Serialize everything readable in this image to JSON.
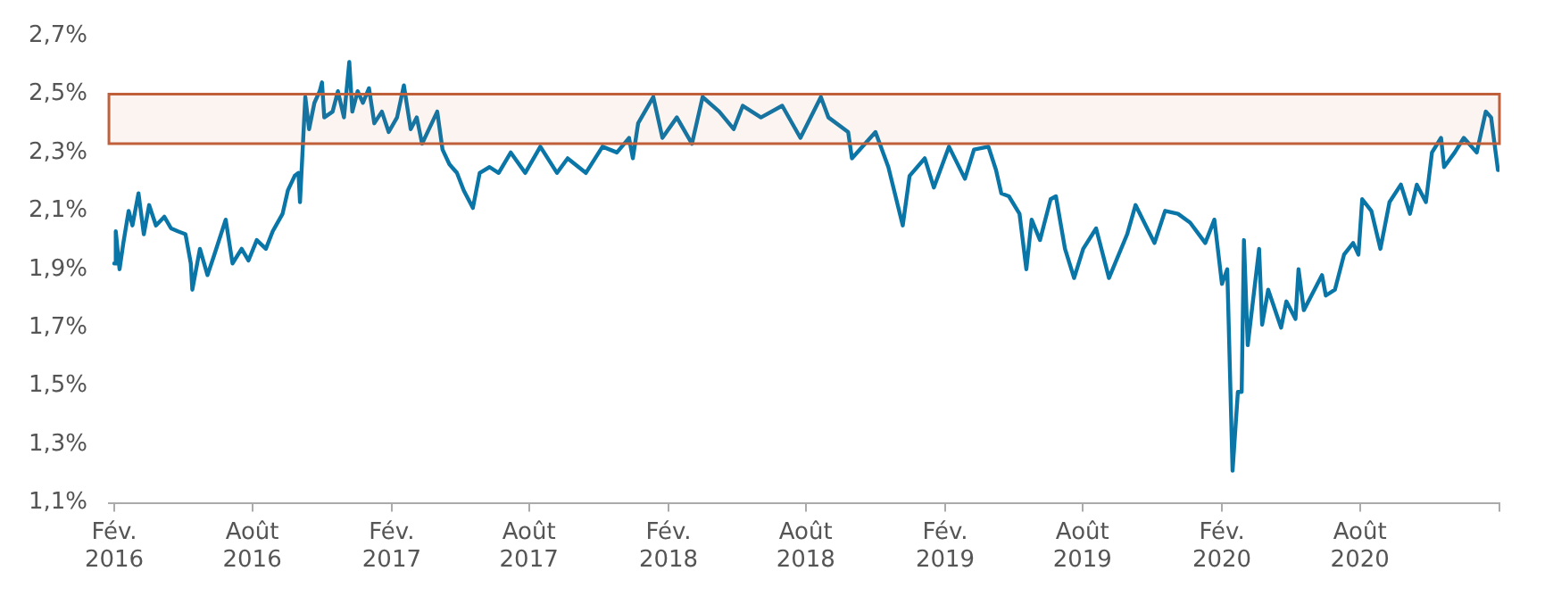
{
  "chart_data": {
    "type": "line",
    "xlim": [
      "2016-01-25",
      "2021-02-01"
    ],
    "ylim": [
      1.1,
      2.7
    ],
    "xticks": [
      {
        "value": "2016-02-01",
        "label": "Fév. 2016"
      },
      {
        "value": "2016-08-01",
        "label": "Août 2016"
      },
      {
        "value": "2017-02-01",
        "label": "Fév. 2017"
      },
      {
        "value": "2017-08-01",
        "label": "Août 2017"
      },
      {
        "value": "2018-02-01",
        "label": "Fév. 2018"
      },
      {
        "value": "2018-08-01",
        "label": "Août 2018"
      },
      {
        "value": "2019-02-01",
        "label": "Fév. 2019"
      },
      {
        "value": "2019-08-01",
        "label": "Août 2019"
      },
      {
        "value": "2020-02-01",
        "label": "Fév. 2020"
      },
      {
        "value": "2020-08-01",
        "label": "Août 2020"
      },
      {
        "value": "2021-02-01",
        "label": null
      }
    ],
    "yticks": [
      {
        "value": 1.1,
        "label": "1,1%"
      },
      {
        "value": 1.3,
        "label": "1,3%"
      },
      {
        "value": 1.5,
        "label": "1,5%"
      },
      {
        "value": 1.7,
        "label": "1,7%"
      },
      {
        "value": 1.9,
        "label": "1,9%"
      },
      {
        "value": 2.1,
        "label": "2,1%"
      },
      {
        "value": 2.3,
        "label": "2,3%"
      },
      {
        "value": 2.5,
        "label": "2,5%"
      },
      {
        "value": 2.7,
        "label": "2,7%"
      }
    ],
    "grid": false,
    "legend": false,
    "marker": "none",
    "line_style": "solid",
    "bands": [
      {
        "axis": "y",
        "from": 2.33,
        "to": 2.5,
        "color": "#c0603a"
      }
    ],
    "series": [
      {
        "color": "#0a76a8",
        "x": [
          "2016-02-01",
          "2016-02-03",
          "2016-02-08",
          "2016-02-13",
          "2016-02-20",
          "2016-02-25",
          "2016-03-04",
          "2016-03-11",
          "2016-03-18",
          "2016-03-27",
          "2016-04-07",
          "2016-04-16",
          "2016-04-25",
          "2016-05-05",
          "2016-05-12",
          "2016-05-14",
          "2016-05-24",
          "2016-06-03",
          "2016-06-12",
          "2016-06-27",
          "2016-07-06",
          "2016-07-18",
          "2016-07-27",
          "2016-08-07",
          "2016-08-19",
          "2016-08-28",
          "2016-09-10",
          "2016-09-17",
          "2016-09-26",
          "2016-10-01",
          "2016-10-03",
          "2016-10-10",
          "2016-10-15",
          "2016-10-22",
          "2016-10-29",
          "2016-11-01",
          "2016-11-04",
          "2016-11-15",
          "2016-11-22",
          "2016-11-30",
          "2016-12-07",
          "2016-12-11",
          "2016-12-18",
          "2016-12-25",
          "2017-01-02",
          "2017-01-09",
          "2017-01-19",
          "2017-01-28",
          "2017-02-08",
          "2017-02-17",
          "2017-02-26",
          "2017-03-06",
          "2017-03-13",
          "2017-04-02",
          "2017-04-09",
          "2017-04-18",
          "2017-04-28",
          "2017-05-07",
          "2017-05-19",
          "2017-05-28",
          "2017-06-10",
          "2017-06-22",
          "2017-07-08",
          "2017-07-27",
          "2017-08-16",
          "2017-09-07",
          "2017-09-21",
          "2017-10-15",
          "2017-11-06",
          "2017-11-25",
          "2017-12-11",
          "2017-12-16",
          "2017-12-23",
          "2018-01-12",
          "2018-01-24",
          "2018-02-12",
          "2018-03-04",
          "2018-03-18",
          "2018-04-09",
          "2018-04-28",
          "2018-05-10",
          "2018-06-03",
          "2018-07-01",
          "2018-07-25",
          "2018-08-21",
          "2018-08-31",
          "2018-09-26",
          "2018-10-01",
          "2018-11-01",
          "2018-11-18",
          "2018-12-07",
          "2018-12-16",
          "2019-01-05",
          "2019-01-17",
          "2019-02-06",
          "2019-02-27",
          "2019-03-11",
          "2019-03-30",
          "2019-04-09",
          "2019-04-16",
          "2019-04-26",
          "2019-05-10",
          "2019-05-19",
          "2019-05-26",
          "2019-06-06",
          "2019-06-20",
          "2019-06-27",
          "2019-07-09",
          "2019-07-21",
          "2019-08-02",
          "2019-08-19",
          "2019-09-05",
          "2019-09-29",
          "2019-10-10",
          "2019-11-04",
          "2019-11-18",
          "2019-12-05",
          "2019-12-21",
          "2020-01-10",
          "2020-01-22",
          "2020-02-01",
          "2020-02-08",
          "2020-02-15",
          "2020-02-22",
          "2020-02-27",
          "2020-03-01",
          "2020-03-06",
          "2020-03-21",
          "2020-03-25",
          "2020-04-02",
          "2020-04-19",
          "2020-04-26",
          "2020-05-08",
          "2020-05-12",
          "2020-05-19",
          "2020-06-12",
          "2020-06-17",
          "2020-06-29",
          "2020-07-11",
          "2020-07-23",
          "2020-07-30",
          "2020-08-04",
          "2020-08-16",
          "2020-08-28",
          "2020-09-09",
          "2020-09-24",
          "2020-10-06",
          "2020-10-15",
          "2020-10-27",
          "2020-11-04",
          "2020-11-16",
          "2020-11-20",
          "2020-12-04",
          "2020-12-16",
          "2021-01-02",
          "2021-01-14",
          "2021-01-21",
          "2021-01-30"
        ],
        "values": [
          1.92,
          2.03,
          1.9,
          1.99,
          2.1,
          2.05,
          2.16,
          2.02,
          2.12,
          2.05,
          2.08,
          2.04,
          2.03,
          2.02,
          1.92,
          1.83,
          1.97,
          1.88,
          1.95,
          2.07,
          1.92,
          1.97,
          1.93,
          2.0,
          1.97,
          2.03,
          2.09,
          2.17,
          2.22,
          2.23,
          2.13,
          2.49,
          2.38,
          2.47,
          2.51,
          2.54,
          2.42,
          2.44,
          2.51,
          2.42,
          2.61,
          2.44,
          2.51,
          2.47,
          2.52,
          2.4,
          2.44,
          2.37,
          2.42,
          2.53,
          2.38,
          2.42,
          2.33,
          2.44,
          2.31,
          2.26,
          2.23,
          2.17,
          2.11,
          2.23,
          2.25,
          2.23,
          2.3,
          2.23,
          2.32,
          2.23,
          2.28,
          2.23,
          2.32,
          2.3,
          2.35,
          2.28,
          2.4,
          2.49,
          2.35,
          2.42,
          2.33,
          2.49,
          2.44,
          2.38,
          2.46,
          2.42,
          2.46,
          2.35,
          2.49,
          2.42,
          2.37,
          2.28,
          2.37,
          2.25,
          2.05,
          2.22,
          2.28,
          2.18,
          2.32,
          2.21,
          2.31,
          2.32,
          2.24,
          2.16,
          2.15,
          2.09,
          1.9,
          2.07,
          2.0,
          2.14,
          2.15,
          1.97,
          1.87,
          1.97,
          2.04,
          1.87,
          2.02,
          2.12,
          1.99,
          2.1,
          2.09,
          2.06,
          1.99,
          2.07,
          1.85,
          1.9,
          1.21,
          1.48,
          1.48,
          2.0,
          1.64,
          1.97,
          1.71,
          1.83,
          1.7,
          1.79,
          1.73,
          1.9,
          1.76,
          1.88,
          1.81,
          1.83,
          1.95,
          1.99,
          1.95,
          2.14,
          2.1,
          1.97,
          2.13,
          2.19,
          2.09,
          2.19,
          2.13,
          2.3,
          2.35,
          2.25,
          2.3,
          2.35,
          2.3,
          2.44,
          2.42,
          2.24
        ]
      }
    ]
  }
}
